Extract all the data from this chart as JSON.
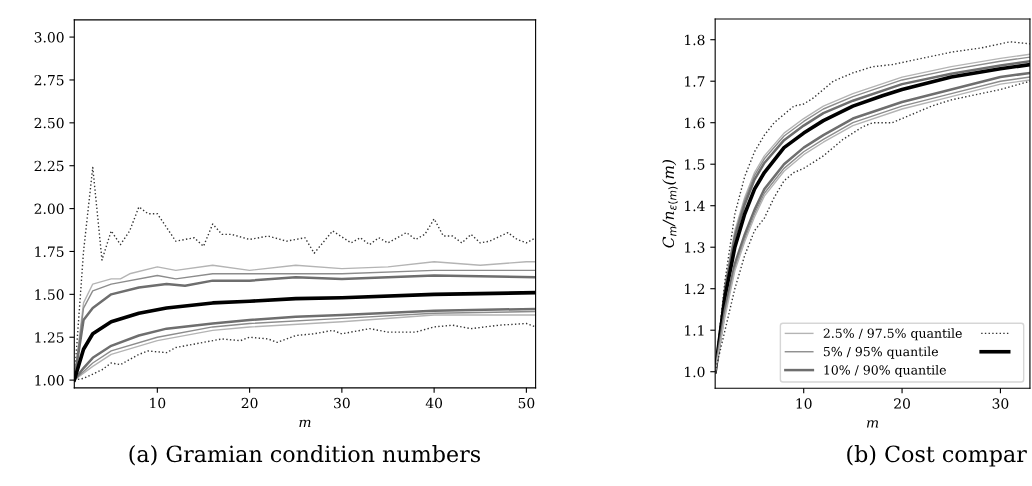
{
  "chart_data": [
    {
      "type": "line",
      "xlabel": "m",
      "xlim": [
        1,
        51
      ],
      "ylim": [
        0.955,
        3.1
      ],
      "xticks": [
        10,
        20,
        30,
        40,
        50
      ],
      "yticks": [
        {
          "value": 1.0,
          "label": "1.00"
        },
        {
          "value": 1.25,
          "label": "1.25"
        },
        {
          "value": 1.5,
          "label": "1.50"
        },
        {
          "value": 1.75,
          "label": "1.75"
        },
        {
          "value": 2.0,
          "label": "2.00"
        },
        {
          "value": 2.25,
          "label": "2.25"
        },
        {
          "value": 2.5,
          "label": "2.50"
        },
        {
          "value": 2.75,
          "label": "2.75"
        },
        {
          "value": 3.0,
          "label": "3.00"
        }
      ],
      "annotations": [
        "(a) Gramian condition numbers"
      ],
      "series": [
        {
          "color": "#333333",
          "line_style": "dotted",
          "x": [
            1,
            2,
            3,
            4,
            5,
            6,
            7,
            8,
            9,
            10,
            12,
            14,
            15,
            16,
            17,
            18,
            20,
            22,
            24,
            26,
            27,
            29,
            31,
            32,
            33,
            34,
            35,
            37,
            38,
            39,
            40,
            41,
            42,
            43,
            44,
            45,
            46,
            48,
            49,
            50,
            51
          ],
          "values": [
            1.0,
            1.75,
            2.24,
            1.7,
            1.87,
            1.79,
            1.87,
            2.01,
            1.97,
            1.97,
            1.81,
            1.83,
            1.78,
            1.91,
            1.85,
            1.85,
            1.82,
            1.84,
            1.81,
            1.83,
            1.74,
            1.87,
            1.8,
            1.83,
            1.79,
            1.83,
            1.8,
            1.86,
            1.82,
            1.85,
            1.94,
            1.84,
            1.84,
            1.8,
            1.85,
            1.8,
            1.81,
            1.86,
            1.82,
            1.8,
            1.83
          ]
        },
        {
          "color": "#333333",
          "line_style": "dotted",
          "x": [
            1,
            2,
            4,
            5,
            6,
            8,
            9,
            11,
            12,
            15,
            17,
            19,
            20,
            22,
            23,
            25,
            27,
            29,
            30,
            33,
            35,
            38,
            40,
            42,
            44,
            47,
            50,
            51
          ],
          "values": [
            1.0,
            1.01,
            1.06,
            1.1,
            1.09,
            1.15,
            1.17,
            1.16,
            1.19,
            1.22,
            1.24,
            1.23,
            1.25,
            1.24,
            1.22,
            1.26,
            1.27,
            1.29,
            1.27,
            1.3,
            1.28,
            1.28,
            1.31,
            1.32,
            1.3,
            1.32,
            1.33,
            1.31
          ]
        },
        {
          "color": "#b4b4b4",
          "line_style": "solid",
          "x": [
            1,
            2,
            3,
            5,
            6,
            7,
            10,
            12,
            16,
            20,
            25,
            30,
            35,
            40,
            45,
            50,
            51
          ],
          "values": [
            1.0,
            1.45,
            1.56,
            1.59,
            1.59,
            1.62,
            1.66,
            1.64,
            1.67,
            1.64,
            1.67,
            1.65,
            1.66,
            1.69,
            1.67,
            1.69,
            1.69
          ]
        },
        {
          "color": "#b4b4b4",
          "line_style": "solid",
          "x": [
            1,
            3,
            5,
            10,
            16,
            20,
            30,
            40,
            51
          ],
          "values": [
            1.0,
            1.08,
            1.15,
            1.23,
            1.29,
            1.31,
            1.34,
            1.38,
            1.38
          ]
        },
        {
          "color": "#8c8c8c",
          "line_style": "solid",
          "x": [
            1,
            2,
            3,
            5,
            10,
            12,
            16,
            20,
            30,
            40,
            51
          ],
          "values": [
            1.0,
            1.42,
            1.52,
            1.56,
            1.61,
            1.59,
            1.62,
            1.62,
            1.62,
            1.64,
            1.64
          ]
        },
        {
          "color": "#8c8c8c",
          "line_style": "solid",
          "x": [
            1,
            3,
            5,
            10,
            16,
            20,
            30,
            40,
            51
          ],
          "values": [
            1.0,
            1.1,
            1.17,
            1.25,
            1.31,
            1.33,
            1.36,
            1.39,
            1.4
          ]
        },
        {
          "color": "#6e6e6e",
          "line_style": "solid",
          "x": [
            1,
            2,
            3,
            5,
            8,
            11,
            13,
            16,
            20,
            25,
            30,
            40,
            51
          ],
          "values": [
            1.0,
            1.35,
            1.42,
            1.5,
            1.54,
            1.56,
            1.55,
            1.58,
            1.58,
            1.6,
            1.59,
            1.61,
            1.6
          ]
        },
        {
          "color": "#6e6e6e",
          "line_style": "solid",
          "x": [
            1,
            2,
            3,
            5,
            8,
            11,
            16,
            20,
            25,
            30,
            40,
            51
          ],
          "values": [
            1.0,
            1.07,
            1.13,
            1.2,
            1.26,
            1.3,
            1.33,
            1.35,
            1.37,
            1.38,
            1.405,
            1.415
          ]
        },
        {
          "color": "#000000",
          "line_style": "solid",
          "x": [
            1,
            2,
            3,
            5,
            8,
            11,
            16,
            20,
            25,
            30,
            40,
            51
          ],
          "values": [
            1.0,
            1.18,
            1.27,
            1.34,
            1.39,
            1.42,
            1.45,
            1.46,
            1.475,
            1.48,
            1.5,
            1.51
          ]
        }
      ]
    },
    {
      "type": "line",
      "xlabel": "m",
      "ylabel": "C$_{m}$/n$_{ε(m)}$(m)",
      "xlim": [
        1,
        33
      ],
      "ylim": [
        0.96,
        1.85
      ],
      "xticks": [
        10,
        20,
        30
      ],
      "yticks": [
        {
          "value": 1.0,
          "label": "1.0"
        },
        1.1,
        1.2,
        1.3,
        1.4,
        1.5,
        1.6,
        1.7,
        1.8
      ],
      "legend": "lower right",
      "annotations": [
        "(b) Cost compar"
      ],
      "series": [
        {
          "name": "2.5% / 97.5% quantile",
          "color": "#b4b4b4",
          "line_style": "solid",
          "x": [
            1,
            2,
            3,
            4,
            5,
            6,
            8,
            10,
            12,
            15,
            20,
            25,
            30,
            33
          ],
          "values": [
            1.0,
            1.21,
            1.34,
            1.42,
            1.48,
            1.52,
            1.575,
            1.61,
            1.64,
            1.67,
            1.71,
            1.735,
            1.755,
            1.765
          ]
        },
        {
          "name": "5% / 95% quantile",
          "color": "#8c8c8c",
          "line_style": "solid",
          "x": [
            1,
            2,
            3,
            4,
            5,
            6,
            8,
            10,
            12,
            15,
            20,
            25,
            30,
            33
          ],
          "values": [
            1.0,
            1.205,
            1.333,
            1.413,
            1.473,
            1.513,
            1.568,
            1.603,
            1.633,
            1.663,
            1.703,
            1.728,
            1.748,
            1.758
          ]
        },
        {
          "name": "10% / 90% quantile",
          "color": "#6e6e6e",
          "line_style": "solid",
          "x": [
            1,
            2,
            3,
            4,
            5,
            6,
            8,
            10,
            12,
            15,
            20,
            25,
            30,
            33
          ],
          "values": [
            1.0,
            1.195,
            1.323,
            1.403,
            1.463,
            1.503,
            1.558,
            1.593,
            1.623,
            1.653,
            1.693,
            1.718,
            1.738,
            1.748
          ]
        },
        {
          "color": "#333333",
          "line_style": "dotted",
          "x": [
            1,
            2,
            3,
            4,
            5,
            6,
            7,
            8,
            9,
            10,
            11,
            13,
            15,
            17,
            19,
            20,
            22,
            25,
            28,
            30,
            31,
            33
          ],
          "values": [
            1.0,
            1.22,
            1.38,
            1.47,
            1.53,
            1.57,
            1.6,
            1.62,
            1.64,
            1.645,
            1.66,
            1.7,
            1.72,
            1.735,
            1.74,
            1.745,
            1.755,
            1.77,
            1.78,
            1.79,
            1.795,
            1.79
          ]
        },
        {
          "color": "#000000",
          "line_style": "solid",
          "x": [
            1,
            2,
            3,
            4,
            5,
            6,
            8,
            10,
            12,
            15,
            18,
            20,
            25,
            30,
            33
          ],
          "values": [
            1.0,
            1.18,
            1.3,
            1.38,
            1.44,
            1.48,
            1.54,
            1.575,
            1.605,
            1.64,
            1.665,
            1.68,
            1.71,
            1.73,
            1.74
          ]
        },
        {
          "color": "#6e6e6e",
          "line_style": "solid",
          "x": [
            1,
            2,
            3,
            4,
            5,
            6,
            8,
            10,
            12,
            15,
            20,
            25,
            30,
            33
          ],
          "values": [
            1.0,
            1.15,
            1.26,
            1.33,
            1.39,
            1.44,
            1.5,
            1.54,
            1.57,
            1.61,
            1.65,
            1.68,
            1.71,
            1.72
          ]
        },
        {
          "color": "#8c8c8c",
          "line_style": "solid",
          "x": [
            1,
            2,
            3,
            4,
            5,
            6,
            8,
            10,
            12,
            15,
            20,
            25,
            30,
            33
          ],
          "values": [
            1.0,
            1.14,
            1.25,
            1.32,
            1.38,
            1.43,
            1.49,
            1.53,
            1.56,
            1.6,
            1.64,
            1.67,
            1.7,
            1.71
          ]
        },
        {
          "color": "#b4b4b4",
          "line_style": "solid",
          "x": [
            1,
            2,
            3,
            4,
            5,
            6,
            8,
            10,
            12,
            15,
            20,
            25,
            30,
            33
          ],
          "values": [
            1.0,
            1.133,
            1.243,
            1.313,
            1.373,
            1.423,
            1.483,
            1.523,
            1.553,
            1.593,
            1.633,
            1.663,
            1.693,
            1.703
          ]
        },
        {
          "color": "#333333",
          "line_style": "dotted",
          "x": [
            1,
            2,
            3,
            4,
            5,
            6,
            7,
            8,
            9,
            10,
            12,
            14,
            16,
            17,
            19,
            21,
            23,
            25,
            28,
            30,
            33
          ],
          "values": [
            1.0,
            1.1,
            1.2,
            1.28,
            1.34,
            1.37,
            1.42,
            1.46,
            1.48,
            1.49,
            1.52,
            1.56,
            1.59,
            1.6,
            1.6,
            1.62,
            1.64,
            1.655,
            1.67,
            1.68,
            1.7
          ]
        }
      ]
    }
  ]
}
